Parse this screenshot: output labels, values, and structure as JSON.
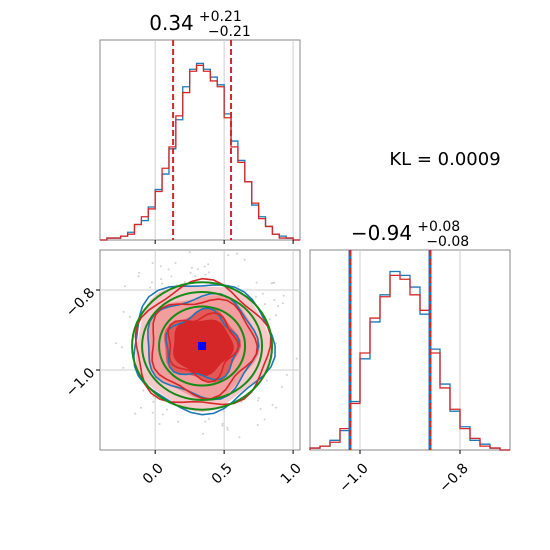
{
  "chart_data": {
    "type": "corner",
    "kl_label": "KL = 0.0009",
    "colors": {
      "blue_series": "#1f77b4",
      "red_series": "#d62728",
      "red_fill_light": "#f29e9e",
      "red_fill_mid": "#e45858",
      "green_contour": "#178a17",
      "truth_marker": "#0000ff",
      "grid": "#cfcfcf",
      "frame": "#888888"
    },
    "param1": {
      "title_main": "0.34",
      "title_plus": "+0.21",
      "title_minus": "−0.21",
      "median": 0.34,
      "q_low": 0.13,
      "q_high": 0.55,
      "range": [
        -0.4,
        1.05
      ],
      "ticks": [
        0.0,
        0.5,
        1.0
      ],
      "tick_labels": [
        "0.0",
        "0.5",
        "1.0"
      ],
      "hist_x": [
        -0.375,
        -0.325,
        -0.275,
        -0.225,
        -0.175,
        -0.125,
        -0.075,
        -0.025,
        0.025,
        0.075,
        0.125,
        0.175,
        0.225,
        0.275,
        0.325,
        0.375,
        0.425,
        0.475,
        0.525,
        0.575,
        0.625,
        0.675,
        0.725,
        0.775,
        0.825,
        0.875,
        0.925,
        0.975,
        1.025
      ],
      "hist_blue": [
        0.0,
        0.01,
        0.01,
        0.02,
        0.04,
        0.08,
        0.1,
        0.17,
        0.26,
        0.34,
        0.47,
        0.62,
        0.79,
        0.88,
        0.91,
        0.88,
        0.84,
        0.8,
        0.65,
        0.51,
        0.41,
        0.3,
        0.18,
        0.12,
        0.07,
        0.03,
        0.02,
        0.01,
        0.0
      ],
      "hist_red": [
        0.0,
        0.01,
        0.01,
        0.02,
        0.03,
        0.08,
        0.12,
        0.16,
        0.25,
        0.37,
        0.48,
        0.64,
        0.76,
        0.87,
        0.9,
        0.87,
        0.82,
        0.79,
        0.63,
        0.48,
        0.4,
        0.3,
        0.19,
        0.11,
        0.07,
        0.03,
        0.01,
        0.01,
        0.0
      ]
    },
    "param2": {
      "title_main": "−0.94",
      "title_plus": "+0.08",
      "title_minus": "−0.08",
      "median": -0.94,
      "q_low": -1.02,
      "q_high": -0.86,
      "range": [
        -1.1,
        -0.7
      ],
      "ticks": [
        -1.0,
        -0.8
      ],
      "tick_labels": [
        "−1.0",
        "−0.8"
      ],
      "hist_x": [
        -1.09,
        -1.07,
        -1.05,
        -1.03,
        -1.01,
        -0.99,
        -0.97,
        -0.95,
        -0.93,
        -0.91,
        -0.89,
        -0.87,
        -0.85,
        -0.83,
        -0.81,
        -0.79,
        -0.77,
        -0.75,
        -0.73,
        -0.71
      ],
      "hist_blue": [
        0.01,
        0.02,
        0.05,
        0.1,
        0.25,
        0.47,
        0.66,
        0.8,
        0.92,
        0.9,
        0.84,
        0.7,
        0.52,
        0.34,
        0.2,
        0.12,
        0.05,
        0.03,
        0.01,
        0.0
      ],
      "hist_red": [
        0.01,
        0.02,
        0.04,
        0.11,
        0.24,
        0.5,
        0.68,
        0.79,
        0.9,
        0.88,
        0.8,
        0.72,
        0.5,
        0.32,
        0.21,
        0.11,
        0.06,
        0.02,
        0.01,
        0.0
      ]
    },
    "joint": {
      "x_range": [
        -0.4,
        1.05
      ],
      "y_range": [
        -1.2,
        -0.7
      ],
      "y_ticks": [
        -0.8,
        -1.0
      ],
      "y_tick_labels": [
        "−0.8",
        "−1.0"
      ],
      "truth": {
        "x": 0.34,
        "y": -0.94
      },
      "contour_levels_sigma": [
        1,
        2,
        3
      ]
    }
  }
}
